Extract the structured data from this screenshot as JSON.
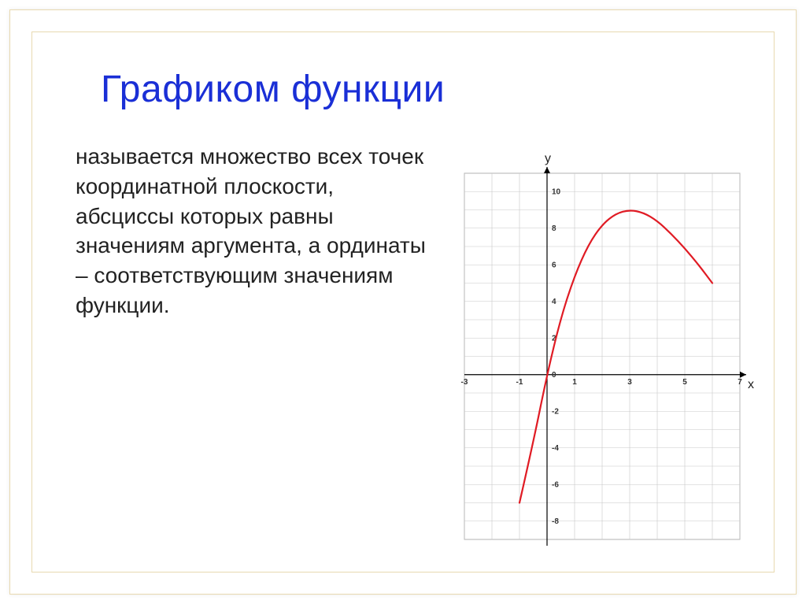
{
  "title": {
    "text": "Графиком функции",
    "color": "#1a2fd6",
    "fontsize": 48
  },
  "body": {
    "text": "называется множество всех точек координатной плоскости, абсциссы которых равны значениям аргумента, а ординаты – соответствующим значениям функции.",
    "color": "#222222",
    "fontsize": 28
  },
  "chart": {
    "type": "line",
    "background_color": "#ffffff",
    "grid_color": "#c8c8c8",
    "axis_color": "#000000",
    "axis_width": 1.2,
    "grid_width": 0.6,
    "curve_color": "#e01b24",
    "curve_width": 2.2,
    "xlim": [
      -3,
      7
    ],
    "ylim": [
      -9,
      11
    ],
    "x_ticks": [
      -3,
      -1,
      1,
      3,
      5,
      7
    ],
    "y_ticks": [
      -8,
      -6,
      -4,
      -2,
      0,
      2,
      4,
      6,
      8,
      10
    ],
    "tick_fontsize": 10,
    "tick_color": "#333333",
    "xlabel": "x",
    "ylabel": "y",
    "label_fontsize": 16,
    "curve_points": [
      [
        -1,
        -7
      ],
      [
        -0.5,
        -3.7
      ],
      [
        0,
        0
      ],
      [
        0.5,
        3.1
      ],
      [
        1,
        5.4
      ],
      [
        1.5,
        7.1
      ],
      [
        2,
        8.2
      ],
      [
        2.5,
        8.8
      ],
      [
        3,
        9.0
      ],
      [
        3.5,
        8.85
      ],
      [
        4,
        8.4
      ],
      [
        4.5,
        7.7
      ],
      [
        5,
        6.9
      ],
      [
        5.5,
        6.0
      ],
      [
        6,
        5.0
      ]
    ]
  }
}
